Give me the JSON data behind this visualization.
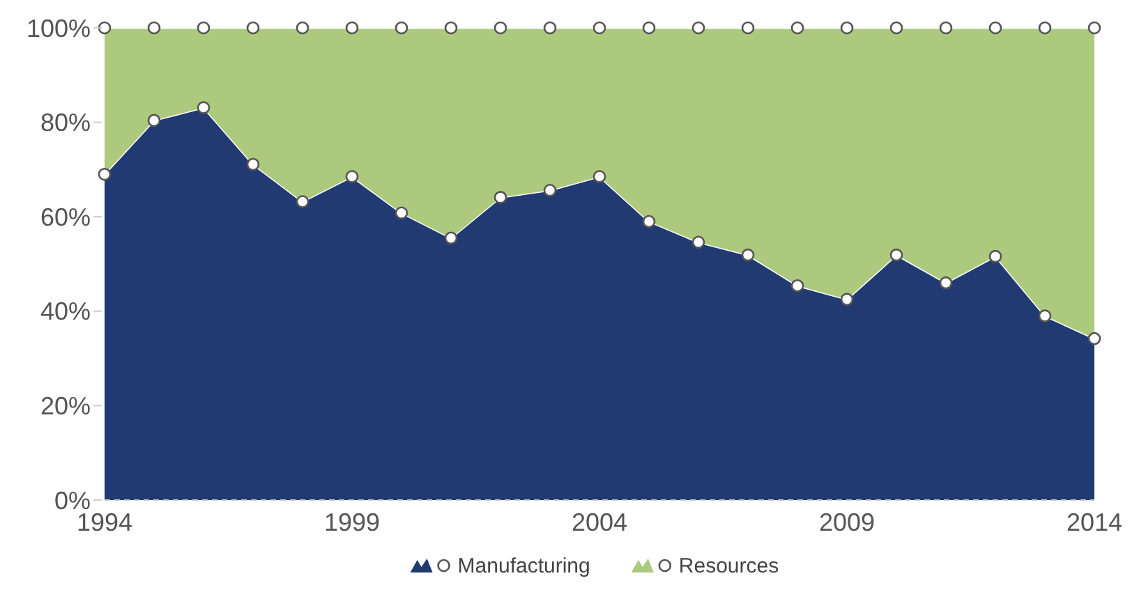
{
  "chart_data": {
    "type": "area",
    "stacked": true,
    "x": [
      1994,
      1995,
      1996,
      1997,
      1998,
      1999,
      2000,
      2001,
      2002,
      2003,
      2004,
      2005,
      2006,
      2007,
      2008,
      2009,
      2010,
      2011,
      2012,
      2013,
      2014
    ],
    "series": [
      {
        "name": "Manufacturing",
        "color": "#213a72",
        "values": [
          69,
          80.4,
          83.1,
          71.1,
          63.2,
          68.5,
          60.8,
          55.5,
          64.1,
          65.6,
          68.5,
          59,
          54.6,
          51.9,
          45.4,
          42.5,
          51.9,
          46,
          51.6,
          39,
          34.2
        ]
      },
      {
        "name": "Resources",
        "color": "#adc97e",
        "values": [
          31,
          19.6,
          16.9,
          28.9,
          36.8,
          31.5,
          39.2,
          44.5,
          35.9,
          34.4,
          31.5,
          41,
          45.4,
          48.1,
          54.6,
          57.5,
          48.1,
          54,
          48.4,
          61,
          65.8
        ]
      }
    ],
    "xlim": [
      1994,
      2014
    ],
    "xticks": [
      1994,
      1999,
      2004,
      2009,
      2014
    ],
    "ylim": [
      0,
      100
    ],
    "yticks": [
      {
        "value": 0,
        "label": "0%"
      },
      {
        "value": 20,
        "label": "20%"
      },
      {
        "value": 40,
        "label": "40%"
      },
      {
        "value": 60,
        "label": "60%"
      },
      {
        "value": 80,
        "label": "80%"
      },
      {
        "value": 100,
        "label": "100%"
      }
    ],
    "legend": "bottom",
    "marker": "circle"
  }
}
